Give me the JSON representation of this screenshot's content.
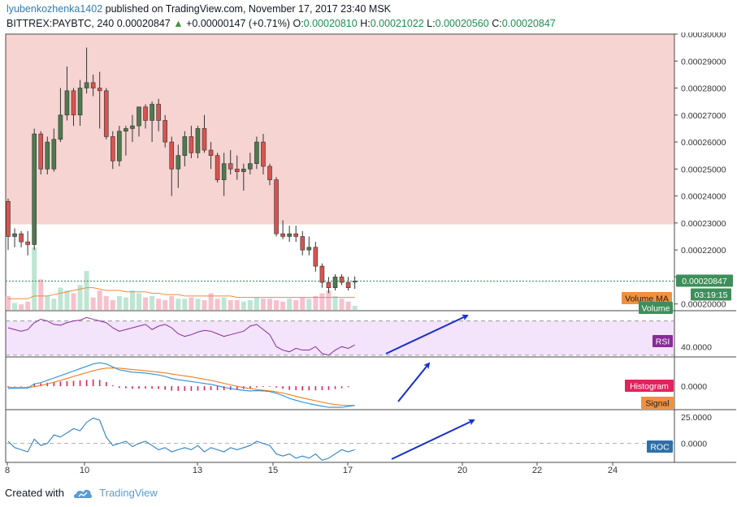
{
  "header": {
    "username": "lyubenkozhenka1402",
    "published": "published on TradingView.com, November 17, 2017 23:40 MSK",
    "symbol": "BITTREX:PAYBTC, 240",
    "price": "0.00020847",
    "change": "+0.00000147 (+0.71%)",
    "open_label": "O:",
    "open": "0.00020810",
    "high_label": "H:",
    "high": "0.00021022",
    "low_label": "L:",
    "low": "0.00020560",
    "close_label": "C:",
    "close": "0.00020847"
  },
  "footer": {
    "created_with": "Created with",
    "brand": "TradingView"
  },
  "colors": {
    "up": "#4e7a4d",
    "down": "#d9534f",
    "resistance_zone": "#f4d2d0",
    "rsi_band": "#f3e3fb",
    "rsi_line": "#8b2a9b",
    "macd_line": "#2b8ed8",
    "signal_line": "#f07b1a",
    "histogram": "#e0245e",
    "roc_line": "#2f7fbf",
    "arrows": "#1630c8",
    "volume_up": "#bfe5d3",
    "volume_down": "#f7c1cc",
    "volume_ma": "#f08a3c"
  },
  "chart_data": {
    "type": "candlestick",
    "x_tick_labels": [
      "8",
      "10",
      "13",
      "15",
      "17",
      "20",
      "22",
      "24"
    ],
    "y_ticks": [
      "0.00020000",
      "0.00021000",
      "0.00022000",
      "0.00023000",
      "0.00024000",
      "0.00025000",
      "0.00026000",
      "0.00027000",
      "0.00028000",
      "0.00029000",
      "0.00030000"
    ],
    "ylim": [
      0.0001975,
      0.0003
    ],
    "price_label": "0.00020847",
    "countdown": "03:19:15",
    "candles": [
      [
        0.000238,
        0.000239,
        0.00022,
        0.000225
      ],
      [
        0.000225,
        0.000228,
        0.000221,
        0.000226
      ],
      [
        0.000226,
        0.000227,
        0.000221,
        0.000223
      ],
      [
        0.000223,
        0.000227,
        0.000218,
        0.000222
      ],
      [
        0.000222,
        0.000265,
        0.00022,
        0.000263
      ],
      [
        0.000263,
        0.000264,
        0.000248,
        0.00025
      ],
      [
        0.00025,
        0.000262,
        0.000248,
        0.00026
      ],
      [
        0.00025,
        0.000265,
        0.000249,
        0.000261
      ],
      [
        0.000261,
        0.00028,
        0.00026,
        0.00027
      ],
      [
        0.00027,
        0.000288,
        0.000268,
        0.000279
      ],
      [
        0.000279,
        0.00028,
        0.000266,
        0.00027
      ],
      [
        0.00027,
        0.000283,
        0.000266,
        0.00028
      ],
      [
        0.00028,
        0.000295,
        0.000278,
        0.000282
      ],
      [
        0.000282,
        0.000285,
        0.000277,
        0.00028
      ],
      [
        0.00028,
        0.000286,
        0.000265,
        0.000279
      ],
      [
        0.000279,
        0.00028,
        0.000261,
        0.000262
      ],
      [
        0.000262,
        0.000264,
        0.00025,
        0.000253
      ],
      [
        0.000253,
        0.000266,
        0.000251,
        0.000264
      ],
      [
        0.000264,
        0.000266,
        0.000255,
        0.000265
      ],
      [
        0.000265,
        0.00027,
        0.00026,
        0.000266
      ],
      [
        0.000266,
        0.000273,
        0.000262,
        0.000273
      ],
      [
        0.000273,
        0.000274,
        0.000265,
        0.000268
      ],
      [
        0.000268,
        0.000275,
        0.00026,
        0.000274
      ],
      [
        0.000274,
        0.000276,
        0.000264,
        0.000268
      ],
      [
        0.000268,
        0.00027,
        0.000258,
        0.00026
      ],
      [
        0.00026,
        0.000262,
        0.00024,
        0.00025
      ],
      [
        0.00025,
        0.000259,
        0.000243,
        0.000255
      ],
      [
        0.000255,
        0.000264,
        0.000251,
        0.000262
      ],
      [
        0.000262,
        0.000266,
        0.000254,
        0.000256
      ],
      [
        0.000256,
        0.000266,
        0.000254,
        0.000265
      ],
      [
        0.000265,
        0.00027,
        0.000256,
        0.000257
      ],
      [
        0.000257,
        0.00026,
        0.00025,
        0.000255
      ],
      [
        0.000255,
        0.000256,
        0.000245,
        0.000246
      ],
      [
        0.000246,
        0.000256,
        0.00024,
        0.000252
      ],
      [
        0.000252,
        0.000257,
        0.000248,
        0.00025
      ],
      [
        0.00025,
        0.000255,
        0.000246,
        0.000249
      ],
      [
        0.000249,
        0.000252,
        0.000242,
        0.00025
      ],
      [
        0.00025,
        0.000256,
        0.000248,
        0.000252
      ],
      [
        0.000252,
        0.000262,
        0.00025,
        0.00026
      ],
      [
        0.00026,
        0.000263,
        0.000248,
        0.000251
      ],
      [
        0.000251,
        0.000252,
        0.000244,
        0.000246
      ],
      [
        0.000246,
        0.000247,
        0.000225,
        0.000226
      ],
      [
        0.000226,
        0.000231,
        0.000224,
        0.000225
      ],
      [
        0.000225,
        0.000229,
        0.000223,
        0.000226
      ],
      [
        0.000226,
        0.000229,
        0.000223,
        0.000225
      ],
      [
        0.000225,
        0.000227,
        0.000218,
        0.00022
      ],
      [
        0.00022,
        0.000225,
        0.000218,
        0.000221
      ],
      [
        0.000221,
        0.000223,
        0.000212,
        0.000214
      ],
      [
        0.000214,
        0.000215,
        0.000206,
        0.000208
      ],
      [
        0.000208,
        0.00021,
        0.000204,
        0.000206
      ],
      [
        0.000206,
        0.000211,
        0.000205,
        0.00021
      ],
      [
        0.00021,
        0.000211,
        0.000207,
        0.000208
      ],
      [
        0.000208,
        0.00021,
        0.000205,
        0.000206
      ],
      [
        0.0002081,
        0.0002102,
        0.0002056,
        0.0002085
      ]
    ],
    "volume": {
      "label": "Volume",
      "ma_label": "Volume MA",
      "values": [
        10,
        5,
        4,
        6,
        45,
        22,
        10,
        8,
        16,
        14,
        12,
        18,
        28,
        9,
        14,
        10,
        7,
        10,
        9,
        14,
        12,
        9,
        10,
        8,
        7,
        10,
        8,
        8,
        9,
        8,
        7,
        12,
        8,
        9,
        7,
        7,
        6,
        7,
        9,
        8,
        8,
        7,
        6,
        8,
        7,
        9,
        8,
        10,
        12,
        14,
        10,
        8,
        6,
        3
      ],
      "ma": [
        8,
        8,
        8,
        8,
        10,
        10,
        10,
        11,
        12,
        13,
        14,
        15,
        16,
        16,
        15,
        14,
        14,
        14,
        13,
        13,
        13,
        13,
        12,
        12,
        11,
        11,
        11,
        10,
        10,
        10,
        10,
        10,
        10,
        10,
        10,
        9,
        9,
        9,
        9,
        9,
        9,
        9,
        9,
        9,
        9,
        9,
        9,
        9,
        9,
        9,
        9,
        9,
        9,
        9
      ]
    },
    "rsi": {
      "label": "RSI",
      "tick": "40.0000",
      "ylim": [
        28,
        82
      ],
      "band": [
        30,
        70
      ],
      "values": [
        62,
        60,
        58,
        60,
        68,
        72,
        70,
        66,
        65,
        68,
        70,
        71,
        74,
        72,
        70,
        68,
        62,
        58,
        60,
        62,
        64,
        66,
        60,
        64,
        66,
        62,
        55,
        52,
        54,
        57,
        59,
        58,
        55,
        52,
        54,
        56,
        58,
        64,
        66,
        60,
        54,
        40,
        36,
        34,
        38,
        36,
        36,
        40,
        32,
        30,
        36,
        40,
        38,
        42
      ]
    },
    "macd": {
      "histogram_label": "Histogram",
      "signal_label": "Signal",
      "tick": "0.0000",
      "ylim": [
        -1.0,
        1.25
      ],
      "macd": [
        -0.1,
        -0.08,
        -0.08,
        -0.08,
        0.1,
        0.15,
        0.25,
        0.35,
        0.45,
        0.55,
        0.65,
        0.75,
        0.85,
        0.95,
        1.0,
        0.95,
        0.82,
        0.7,
        0.65,
        0.6,
        0.58,
        0.56,
        0.52,
        0.48,
        0.42,
        0.33,
        0.28,
        0.24,
        0.2,
        0.16,
        0.12,
        0.08,
        0.02,
        -0.05,
        -0.1,
        -0.14,
        -0.18,
        -0.2,
        -0.19,
        -0.2,
        -0.23,
        -0.3,
        -0.4,
        -0.52,
        -0.6,
        -0.68,
        -0.74,
        -0.8,
        -0.85,
        -0.9,
        -0.9,
        -0.9,
        -0.86,
        -0.82
      ],
      "signal": [
        -0.05,
        -0.06,
        -0.06,
        -0.06,
        -0.02,
        0.03,
        0.1,
        0.17,
        0.25,
        0.33,
        0.42,
        0.5,
        0.58,
        0.66,
        0.73,
        0.77,
        0.78,
        0.77,
        0.74,
        0.71,
        0.69,
        0.66,
        0.63,
        0.6,
        0.57,
        0.52,
        0.48,
        0.44,
        0.4,
        0.35,
        0.3,
        0.25,
        0.19,
        0.12,
        0.06,
        0.0,
        -0.06,
        -0.1,
        -0.14,
        -0.17,
        -0.2,
        -0.24,
        -0.29,
        -0.36,
        -0.43,
        -0.5,
        -0.56,
        -0.62,
        -0.68,
        -0.74,
        -0.78,
        -0.81,
        -0.82,
        -0.82
      ],
      "histogram": [
        -0.05,
        -0.02,
        -0.02,
        -0.02,
        0.12,
        0.12,
        0.15,
        0.18,
        0.2,
        0.22,
        0.23,
        0.25,
        0.27,
        0.29,
        0.27,
        0.18,
        0.04,
        -0.07,
        -0.09,
        -0.11,
        -0.11,
        -0.1,
        -0.11,
        -0.12,
        -0.15,
        -0.19,
        -0.2,
        -0.2,
        -0.2,
        -0.19,
        -0.18,
        -0.17,
        -0.17,
        -0.17,
        -0.16,
        -0.14,
        -0.12,
        -0.1,
        -0.05,
        -0.03,
        -0.03,
        -0.06,
        -0.11,
        -0.16,
        -0.17,
        -0.18,
        -0.18,
        -0.18,
        -0.17,
        -0.16,
        -0.12,
        -0.09,
        -0.04,
        0.0
      ]
    },
    "roc": {
      "label": "ROC",
      "ticks": [
        "25.0000",
        "0.0000"
      ],
      "ylim": [
        -18,
        32
      ],
      "values": [
        2,
        -4,
        -6,
        -8,
        4,
        -2,
        0,
        8,
        6,
        10,
        14,
        12,
        20,
        24,
        22,
        6,
        -2,
        0,
        2,
        -3,
        0,
        2,
        -2,
        -6,
        -4,
        -8,
        -6,
        -4,
        -6,
        -2,
        -8,
        -4,
        -6,
        -8,
        -4,
        -6,
        -4,
        -2,
        2,
        0,
        -2,
        -10,
        -12,
        -10,
        -14,
        -12,
        -14,
        -10,
        -16,
        -14,
        -10,
        -6,
        -8,
        -6
      ]
    }
  }
}
